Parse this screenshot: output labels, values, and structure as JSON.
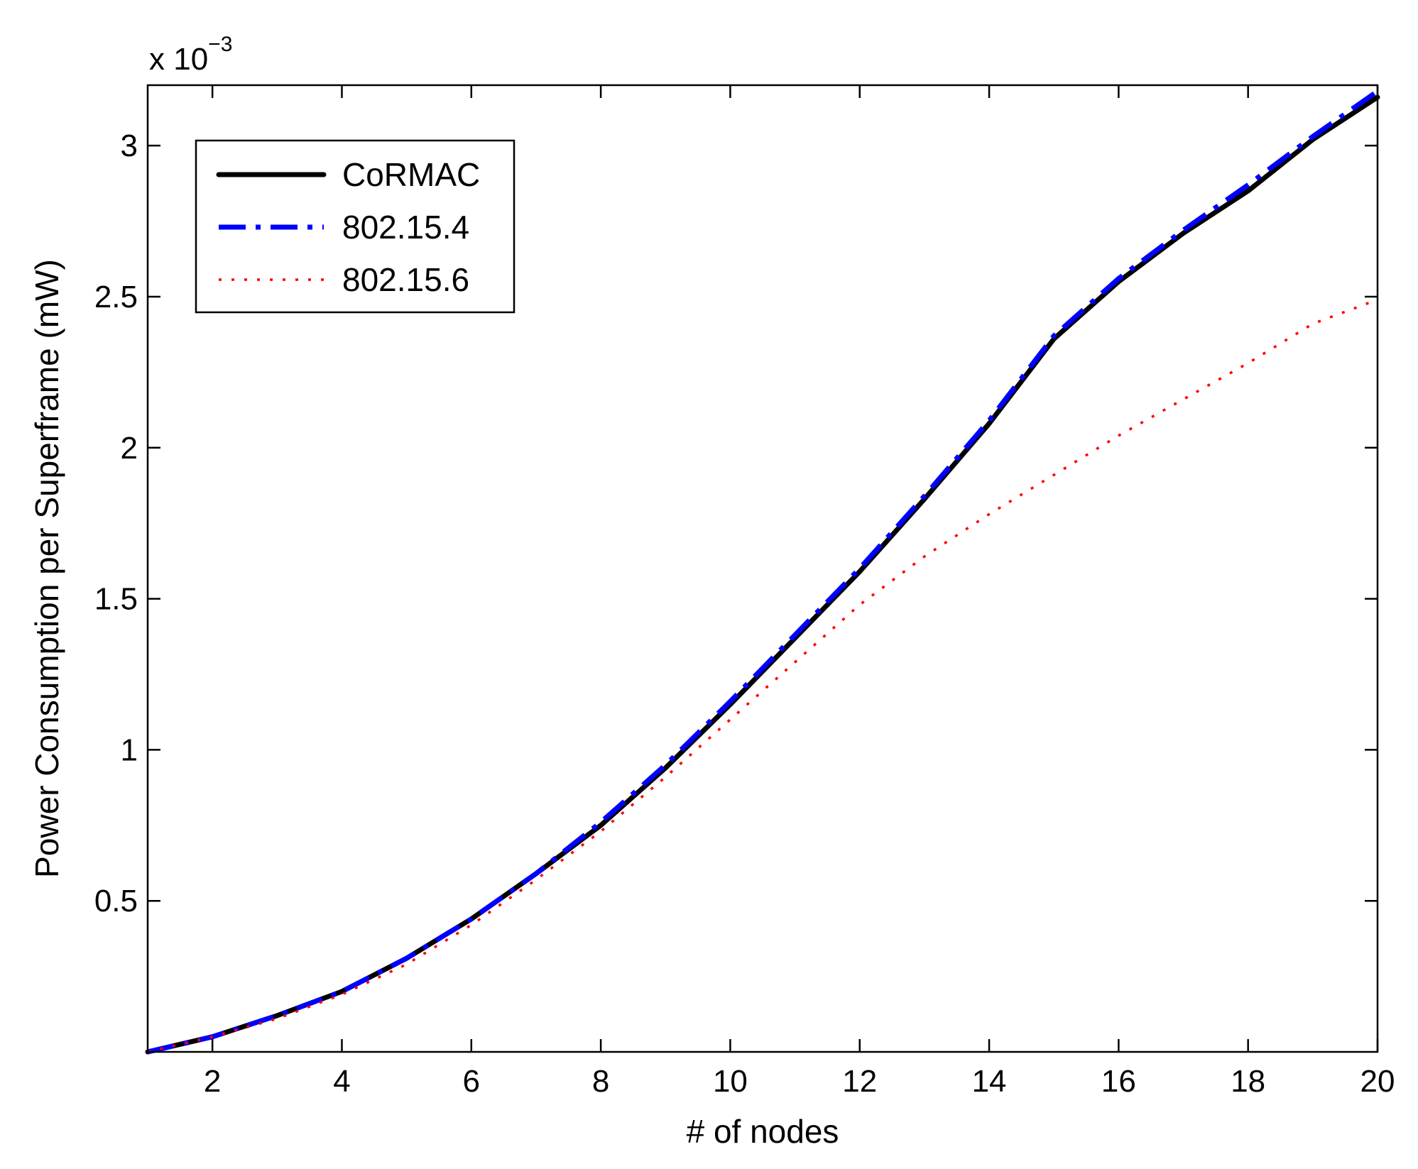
{
  "chart_data": {
    "type": "line",
    "xlabel": "# of nodes",
    "ylabel": "Power Consumption per Superframe (mW)",
    "y_multiplier": {
      "base": "x 10",
      "exponent": "−3"
    },
    "xlim": [
      1,
      20
    ],
    "ylim": [
      0,
      3.2
    ],
    "x_ticks": [
      2,
      4,
      6,
      8,
      10,
      12,
      14,
      16,
      18,
      20
    ],
    "x_tick_labels": [
      "2",
      "4",
      "6",
      "8",
      "10",
      "12",
      "14",
      "16",
      "18",
      "20"
    ],
    "y_ticks": [
      0.5,
      1,
      1.5,
      2,
      2.5,
      3
    ],
    "y_tick_labels": [
      "0.5",
      "1",
      "1.5",
      "2",
      "2.5",
      "3"
    ],
    "grid": false,
    "legend_position": "top-left",
    "x": [
      1,
      2,
      3,
      4,
      5,
      6,
      7,
      8,
      9,
      10,
      11,
      12,
      13,
      14,
      15,
      16,
      17,
      18,
      19,
      20
    ],
    "series": [
      {
        "name": "CoRMAC",
        "color": "#000000",
        "style": "solid",
        "values": [
          0.0,
          0.05,
          0.12,
          0.2,
          0.31,
          0.44,
          0.59,
          0.75,
          0.94,
          1.15,
          1.37,
          1.59,
          1.83,
          2.08,
          2.36,
          2.55,
          2.71,
          2.85,
          3.02,
          3.16
        ]
      },
      {
        "name": "802.15.4",
        "color": "#0000ff",
        "style": "dashdot",
        "values": [
          0.0,
          0.05,
          0.12,
          0.2,
          0.31,
          0.44,
          0.59,
          0.76,
          0.95,
          1.16,
          1.38,
          1.6,
          1.84,
          2.09,
          2.37,
          2.56,
          2.72,
          2.87,
          3.03,
          3.18
        ]
      },
      {
        "name": "802.15.6",
        "color": "#ff0000",
        "style": "dotted",
        "values": [
          0.0,
          0.05,
          0.11,
          0.19,
          0.29,
          0.42,
          0.57,
          0.73,
          0.91,
          1.1,
          1.29,
          1.48,
          1.64,
          1.78,
          1.91,
          2.04,
          2.16,
          2.28,
          2.41,
          2.49
        ]
      }
    ]
  }
}
